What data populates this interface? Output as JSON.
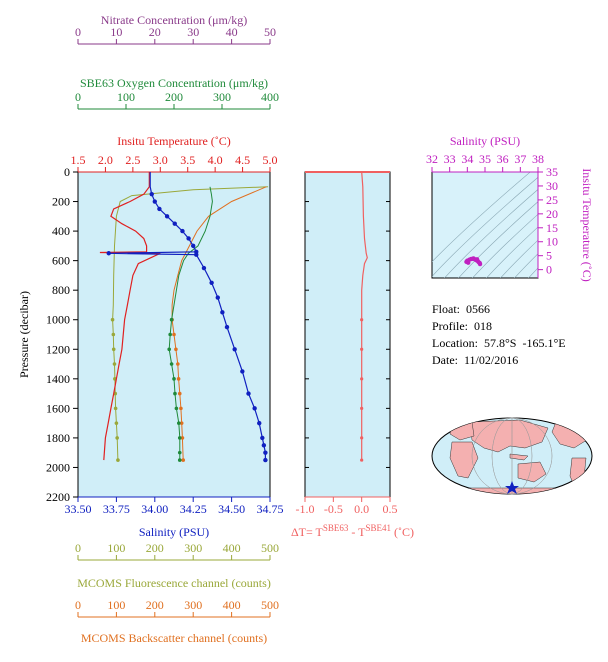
{
  "colors": {
    "nitrate": "#8a3a8a",
    "oxygen": "#1f8a3a",
    "temperature": "#e02020",
    "salinity": "#1020c0",
    "fluorescence": "#9aa83a",
    "backscatter": "#e07020",
    "delta_t": "#f06060",
    "ts_salinity": "#c020c0",
    "panel_bg": "#d0eef8",
    "ts_bg": "#d8f2fa",
    "land": "#f4b0b0",
    "ocean": "#d0eef8"
  },
  "info": {
    "float": "Float:  0566",
    "profile": "Profile:  018",
    "location": "Location:  57.8°S  -165.1°E",
    "date": "Date:  11/02/2016"
  },
  "axes": {
    "nitrate": {
      "label": "Nitrate Concentration (μm/kg)",
      "ticks": [
        "0",
        "10",
        "20",
        "30",
        "40",
        "50"
      ]
    },
    "oxygen": {
      "label": "SBE63 Oxygen Concentration (μm/kg)",
      "ticks": [
        "0",
        "100",
        "200",
        "300",
        "400"
      ]
    },
    "temperature": {
      "label": "Insitu Temperature (˚C)",
      "ticks": [
        "1.5",
        "2.0",
        "2.5",
        "3.0",
        "3.5",
        "4.0",
        "4.5",
        "5.0"
      ]
    },
    "salinity": {
      "label": "Salinity (PSU)",
      "ticks": [
        "33.50",
        "33.75",
        "34.00",
        "34.25",
        "34.50",
        "34.75"
      ]
    },
    "pressure": {
      "label": "Pressure (decibar)",
      "ticks": [
        "0",
        "200",
        "400",
        "600",
        "800",
        "1000",
        "1200",
        "1400",
        "1600",
        "1800",
        "2000",
        "2200"
      ]
    },
    "fluorescence": {
      "label": "MCOMS Fluorescence channel (counts)",
      "ticks": [
        "0",
        "100",
        "200",
        "300",
        "400",
        "500"
      ]
    },
    "backscatter": {
      "label": "MCOMS Backscatter channel (counts)",
      "ticks": [
        "0",
        "100",
        "200",
        "300",
        "400",
        "500"
      ]
    },
    "delta_t": {
      "label_main": "ΔT= T",
      "sup1": "SBE63",
      "label_mid": " - T",
      "sup2": "SBE41",
      "label_end": " (˚C)",
      "ticks": [
        "-1.0",
        "-0.5",
        "0.0",
        "0.5"
      ]
    },
    "ts_salinity": {
      "label": "Salinity (PSU)",
      "ticks": [
        "32",
        "33",
        "34",
        "35",
        "36",
        "37",
        "38"
      ]
    },
    "ts_temperature": {
      "label": "Insitu Temperature (˚C)",
      "ticks": [
        "0",
        "5",
        "10",
        "15",
        "20",
        "25",
        "30",
        "35"
      ]
    }
  },
  "chart_data": [
    {
      "type": "line",
      "title": "",
      "ylabel": "Pressure (decibar)",
      "ylim": [
        2200,
        0
      ],
      "series": [
        {
          "name": "Insitu Temperature",
          "unit": "˚C",
          "xlim": [
            1.5,
            5.0
          ],
          "x": [
            2.8,
            2.8,
            2.7,
            2.45,
            2.15,
            2.1,
            2.3,
            2.55,
            2.7,
            2.75,
            2.75,
            1.9,
            3.0,
            2.6,
            2.5,
            2.45,
            2.4,
            2.35,
            2.3,
            2.25,
            2.2,
            2.15,
            2.1,
            2.05,
            2.0,
            1.97
          ],
          "y": [
            0,
            100,
            150,
            200,
            250,
            300,
            350,
            400,
            450,
            500,
            540,
            545,
            550,
            620,
            700,
            800,
            900,
            1000,
            1200,
            1300,
            1400,
            1500,
            1600,
            1700,
            1800,
            1950
          ]
        },
        {
          "name": "Salinity",
          "unit": "PSU",
          "xlim": [
            33.5,
            34.75
          ],
          "x": [
            33.97,
            33.97,
            33.97,
            33.98,
            34.0,
            34.03,
            34.08,
            34.13,
            34.18,
            34.22,
            34.25,
            34.27,
            33.7,
            34.27,
            34.32,
            34.37,
            34.41,
            34.44,
            34.47,
            34.52,
            34.57,
            34.61,
            34.65,
            34.68,
            34.7,
            34.71,
            34.72,
            34.72
          ],
          "y": [
            0,
            50,
            100,
            150,
            200,
            250,
            300,
            350,
            400,
            450,
            500,
            540,
            550,
            560,
            650,
            750,
            850,
            950,
            1050,
            1200,
            1350,
            1500,
            1600,
            1700,
            1800,
            1850,
            1900,
            1950
          ]
        },
        {
          "name": "SBE63 Oxygen Concentration",
          "unit": "μm/kg",
          "xlim": [
            0,
            400
          ],
          "x": [
            275,
            278,
            280,
            275,
            265,
            250,
            230,
            220,
            210,
            205,
            200,
            195,
            192,
            190,
            195,
            200,
            202,
            205,
            210,
            212,
            212,
            212
          ],
          "y": [
            100,
            150,
            200,
            300,
            400,
            500,
            550,
            600,
            700,
            800,
            900,
            1000,
            1100,
            1200,
            1300,
            1400,
            1500,
            1600,
            1700,
            1800,
            1900,
            1950
          ]
        },
        {
          "name": "MCOMS Fluorescence channel",
          "unit": "counts",
          "xlim": [
            0,
            500
          ],
          "x": [
            495,
            300,
            140,
            110,
            100,
            95,
            93,
            92,
            90,
            92,
            93,
            95,
            96,
            97,
            98,
            100,
            102,
            104
          ],
          "y": [
            100,
            120,
            160,
            200,
            300,
            500,
            700,
            900,
            1000,
            1100,
            1200,
            1300,
            1400,
            1500,
            1600,
            1700,
            1800,
            1950
          ]
        },
        {
          "name": "MCOMS Backscatter channel",
          "unit": "counts",
          "xlim": [
            0,
            500
          ],
          "x": [
            490,
            400,
            340,
            310,
            290,
            270,
            260,
            250,
            245,
            245,
            250,
            255,
            260,
            262,
            265,
            268,
            270,
            272,
            274
          ],
          "y": [
            100,
            200,
            300,
            400,
            500,
            600,
            700,
            800,
            900,
            1000,
            1100,
            1200,
            1300,
            1400,
            1500,
            1600,
            1700,
            1800,
            1950
          ]
        },
        {
          "name": "ΔT",
          "unit": "˚C",
          "xlim": [
            -1.0,
            0.5
          ],
          "x": [
            0.0,
            0.02,
            0.03,
            0.05,
            0.08,
            0.1,
            0.05,
            0.02,
            0.0,
            0.0,
            0.0,
            0.0,
            0.0,
            0.0,
            0.0
          ],
          "y": [
            0,
            100,
            300,
            450,
            550,
            580,
            620,
            700,
            800,
            1000,
            1200,
            1400,
            1600,
            1800,
            1950
          ]
        }
      ]
    },
    {
      "type": "scatter",
      "title": "",
      "xlabel": "Salinity (PSU)",
      "ylabel": "Insitu Temperature (˚C)",
      "xlim": [
        32,
        38
      ],
      "ylim": [
        -3,
        35
      ],
      "series": [
        {
          "name": "T-S profile",
          "x": [
            33.95,
            34.0,
            34.1,
            34.2,
            34.3,
            34.4,
            34.5,
            34.6,
            34.7,
            34.72,
            34.05,
            34.35,
            34.55,
            34.65
          ],
          "y": [
            2.8,
            3.2,
            3.5,
            3.8,
            3.9,
            3.8,
            3.4,
            3.0,
            2.4,
            2.0,
            2.5,
            4.0,
            3.7,
            2.6
          ]
        }
      ]
    }
  ]
}
